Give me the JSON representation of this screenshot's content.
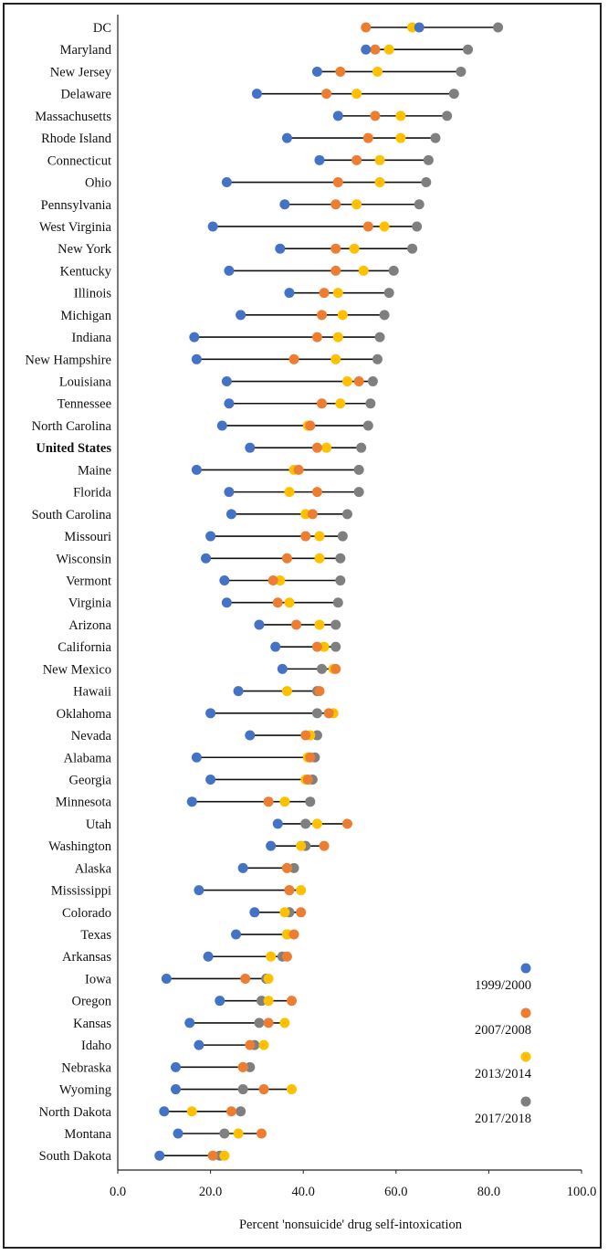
{
  "chart_data": {
    "type": "dumbbell",
    "title": "",
    "xlabel": "Percent 'nonsuicide' drug self-intoxication",
    "ylabel": "",
    "xlim": [
      0,
      100
    ],
    "xticks": [
      0,
      20,
      40,
      60,
      80,
      100
    ],
    "xtick_labels": [
      "0.0",
      "20.0",
      "40.0",
      "60.0",
      "80.0",
      "100.0"
    ],
    "grid": false,
    "legend_position": "bottom-right",
    "highlight_category": "United States",
    "series": [
      {
        "name": "1999/2000",
        "color": "#4472C4"
      },
      {
        "name": "2007/2008",
        "color": "#ED7D31"
      },
      {
        "name": "2013/2014",
        "color": "#FFC000"
      },
      {
        "name": "2017/2018",
        "color": "#7F7F7F"
      }
    ],
    "categories": [
      {
        "name": "DC",
        "values": [
          65,
          53.5,
          63.5,
          82
        ]
      },
      {
        "name": "Maryland",
        "values": [
          53.5,
          55.5,
          58.5,
          75.5
        ]
      },
      {
        "name": "New Jersey",
        "values": [
          43,
          48,
          56,
          74
        ]
      },
      {
        "name": "Delaware",
        "values": [
          30,
          45,
          51.5,
          72.5
        ]
      },
      {
        "name": "Massachusetts",
        "values": [
          47.5,
          55.5,
          61,
          71
        ]
      },
      {
        "name": "Rhode Island",
        "values": [
          36.5,
          54,
          61,
          68.5
        ]
      },
      {
        "name": "Connecticut",
        "values": [
          43.5,
          51.5,
          56.5,
          67
        ]
      },
      {
        "name": "Ohio",
        "values": [
          23.5,
          47.5,
          56.5,
          66.5
        ]
      },
      {
        "name": "Pennsylvania",
        "values": [
          36,
          47,
          51.5,
          65
        ]
      },
      {
        "name": "West Virginia",
        "values": [
          20.5,
          54,
          57.5,
          64.5
        ]
      },
      {
        "name": "New York",
        "values": [
          35,
          47,
          51,
          63.5
        ]
      },
      {
        "name": "Kentucky",
        "values": [
          24,
          47,
          53,
          59.5
        ]
      },
      {
        "name": "Illinois",
        "values": [
          37,
          44.5,
          47.5,
          58.5
        ]
      },
      {
        "name": "Michigan",
        "values": [
          26.5,
          44,
          48.5,
          57.5
        ]
      },
      {
        "name": "Indiana",
        "values": [
          16.5,
          43,
          47.5,
          56.5
        ]
      },
      {
        "name": "New Hampshire",
        "values": [
          17,
          38,
          47,
          56
        ]
      },
      {
        "name": "Louisiana",
        "values": [
          23.5,
          52,
          49.5,
          55
        ]
      },
      {
        "name": "Tennessee",
        "values": [
          24,
          44,
          48,
          54.5
        ]
      },
      {
        "name": "North Carolina",
        "values": [
          22.5,
          41.5,
          41,
          54
        ]
      },
      {
        "name": "United States",
        "values": [
          28.5,
          43,
          45,
          52.5
        ]
      },
      {
        "name": "Maine",
        "values": [
          17,
          39,
          38,
          52
        ]
      },
      {
        "name": "Florida",
        "values": [
          24,
          43,
          37,
          52
        ]
      },
      {
        "name": "South Carolina",
        "values": [
          24.5,
          42,
          40.5,
          49.5
        ]
      },
      {
        "name": "Missouri",
        "values": [
          20,
          40.5,
          43.5,
          48.5
        ]
      },
      {
        "name": "Wisconsin",
        "values": [
          19,
          36.5,
          43.5,
          48
        ]
      },
      {
        "name": "Vermont",
        "values": [
          23,
          33.5,
          35,
          48
        ]
      },
      {
        "name": "Virginia",
        "values": [
          23.5,
          34.5,
          37,
          47.5
        ]
      },
      {
        "name": "Arizona",
        "values": [
          30.5,
          38.5,
          43.5,
          47
        ]
      },
      {
        "name": "California",
        "values": [
          34,
          43,
          44.5,
          47
        ]
      },
      {
        "name": "New Mexico",
        "values": [
          35.5,
          47,
          46.5,
          44
        ]
      },
      {
        "name": "Hawaii",
        "values": [
          26,
          43.5,
          36.5,
          43
        ]
      },
      {
        "name": "Oklahoma",
        "values": [
          20,
          45.5,
          46.5,
          43
        ]
      },
      {
        "name": "Nevada",
        "values": [
          28.5,
          40.5,
          41.5,
          43
        ]
      },
      {
        "name": "Alabama",
        "values": [
          17,
          41.5,
          41,
          42.5
        ]
      },
      {
        "name": "Georgia",
        "values": [
          20,
          41,
          40.5,
          42
        ]
      },
      {
        "name": "Minnesota",
        "values": [
          16,
          32.5,
          36,
          41.5
        ]
      },
      {
        "name": "Utah",
        "values": [
          34.5,
          49.5,
          43,
          40.5
        ]
      },
      {
        "name": "Washington",
        "values": [
          33,
          44.5,
          39.5,
          40.5
        ]
      },
      {
        "name": "Alaska",
        "values": [
          27,
          36.5,
          36.5,
          38
        ]
      },
      {
        "name": "Mississippi",
        "values": [
          17.5,
          37,
          39.5,
          37
        ]
      },
      {
        "name": "Colorado",
        "values": [
          29.5,
          39.5,
          36,
          37
        ]
      },
      {
        "name": "Texas",
        "values": [
          25.5,
          38,
          36.5,
          36.5
        ]
      },
      {
        "name": "Arkansas",
        "values": [
          19.5,
          36.5,
          33,
          35.5
        ]
      },
      {
        "name": "Iowa",
        "values": [
          10.5,
          27.5,
          32.5,
          32
        ]
      },
      {
        "name": "Oregon",
        "values": [
          22,
          37.5,
          32.5,
          31
        ]
      },
      {
        "name": "Kansas",
        "values": [
          15.5,
          32.5,
          36,
          30.5
        ]
      },
      {
        "name": "Idaho",
        "values": [
          17.5,
          28.5,
          31.5,
          29.5
        ]
      },
      {
        "name": "Nebraska",
        "values": [
          12.5,
          27,
          27,
          28.5
        ]
      },
      {
        "name": "Wyoming",
        "values": [
          12.5,
          31.5,
          37.5,
          27
        ]
      },
      {
        "name": "North Dakota",
        "values": [
          10,
          24.5,
          16,
          26.5
        ]
      },
      {
        "name": "Montana",
        "values": [
          13,
          31,
          26,
          23
        ]
      },
      {
        "name": "South Dakota",
        "values": [
          9,
          20.5,
          23,
          22
        ]
      }
    ]
  }
}
